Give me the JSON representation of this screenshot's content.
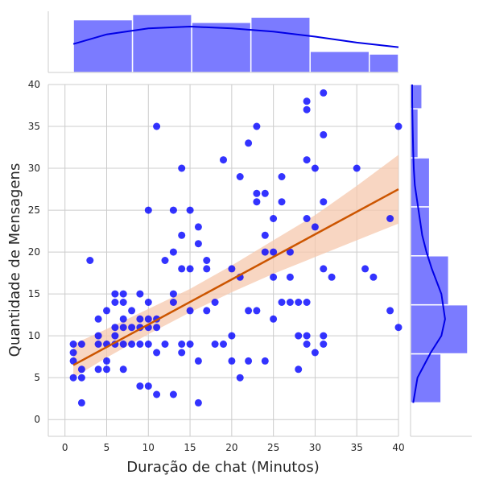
{
  "chart_data": {
    "type": "scatter",
    "title": "",
    "xlabel": "Duração de chat (Minutos)",
    "ylabel": "Quantidade de Mensagens",
    "xlim": [
      -2,
      40
    ],
    "ylim": [
      -2,
      40
    ],
    "xticks": [
      "0",
      "5",
      "10",
      "15",
      "20",
      "25",
      "30",
      "35",
      "40"
    ],
    "yticks": [
      "0",
      "5",
      "10",
      "15",
      "20",
      "25",
      "30",
      "35",
      "40"
    ],
    "grid": true,
    "point_color": "#0000ff",
    "regression_color": "#cc5500",
    "ci_color": "#f5c8ad",
    "hist_color": "#7b7bff",
    "kde_color": "#0000e6",
    "points": [
      [
        1,
        9
      ],
      [
        1,
        8
      ],
      [
        1,
        7
      ],
      [
        1,
        5
      ],
      [
        2,
        2
      ],
      [
        2,
        5
      ],
      [
        2,
        6
      ],
      [
        2,
        9
      ],
      [
        3,
        19
      ],
      [
        4,
        9
      ],
      [
        4,
        10
      ],
      [
        4,
        12
      ],
      [
        4,
        6
      ],
      [
        5,
        13
      ],
      [
        5,
        7
      ],
      [
        5,
        6
      ],
      [
        5,
        9
      ],
      [
        6,
        15
      ],
      [
        6,
        14
      ],
      [
        6,
        9
      ],
      [
        6,
        10
      ],
      [
        6,
        11
      ],
      [
        7,
        15
      ],
      [
        7,
        14
      ],
      [
        7,
        12
      ],
      [
        7,
        11
      ],
      [
        7,
        9
      ],
      [
        7,
        6
      ],
      [
        8,
        11
      ],
      [
        8,
        13
      ],
      [
        8,
        9
      ],
      [
        9,
        15
      ],
      [
        9,
        12
      ],
      [
        9,
        11
      ],
      [
        9,
        9
      ],
      [
        9,
        4
      ],
      [
        10,
        25
      ],
      [
        10,
        14
      ],
      [
        10,
        12
      ],
      [
        10,
        11
      ],
      [
        10,
        9
      ],
      [
        10,
        4
      ],
      [
        11,
        35
      ],
      [
        11,
        12
      ],
      [
        11,
        11
      ],
      [
        11,
        8
      ],
      [
        11,
        3
      ],
      [
        12,
        19
      ],
      [
        12,
        9
      ],
      [
        13,
        25
      ],
      [
        13,
        20
      ],
      [
        13,
        15
      ],
      [
        13,
        14
      ],
      [
        13,
        3
      ],
      [
        14,
        30
      ],
      [
        14,
        22
      ],
      [
        14,
        18
      ],
      [
        14,
        9
      ],
      [
        14,
        8
      ],
      [
        15,
        25
      ],
      [
        15,
        18
      ],
      [
        15,
        13
      ],
      [
        15,
        9
      ],
      [
        16,
        23
      ],
      [
        16,
        21
      ],
      [
        16,
        7
      ],
      [
        16,
        2
      ],
      [
        17,
        19
      ],
      [
        17,
        18
      ],
      [
        17,
        13
      ],
      [
        18,
        14
      ],
      [
        18,
        9
      ],
      [
        19,
        31
      ],
      [
        19,
        9
      ],
      [
        20,
        18
      ],
      [
        20,
        10
      ],
      [
        20,
        7
      ],
      [
        21,
        29
      ],
      [
        21,
        17
      ],
      [
        21,
        5
      ],
      [
        22,
        33
      ],
      [
        22,
        13
      ],
      [
        22,
        7
      ],
      [
        23,
        35
      ],
      [
        23,
        27
      ],
      [
        23,
        26
      ],
      [
        23,
        13
      ],
      [
        24,
        27
      ],
      [
        24,
        22
      ],
      [
        24,
        20
      ],
      [
        24,
        7
      ],
      [
        25,
        24
      ],
      [
        25,
        20
      ],
      [
        25,
        17
      ],
      [
        25,
        12
      ],
      [
        26,
        29
      ],
      [
        26,
        26
      ],
      [
        26,
        14
      ],
      [
        27,
        20
      ],
      [
        27,
        17
      ],
      [
        27,
        14
      ],
      [
        28,
        14
      ],
      [
        28,
        10
      ],
      [
        28,
        6
      ],
      [
        29,
        38
      ],
      [
        29,
        37
      ],
      [
        29,
        31
      ],
      [
        29,
        24
      ],
      [
        29,
        14
      ],
      [
        29,
        10
      ],
      [
        29,
        9
      ],
      [
        30,
        30
      ],
      [
        30,
        23
      ],
      [
        30,
        8
      ],
      [
        31,
        39
      ],
      [
        31,
        34
      ],
      [
        31,
        26
      ],
      [
        31,
        18
      ],
      [
        31,
        10
      ],
      [
        31,
        9
      ],
      [
        32,
        17
      ],
      [
        35,
        30
      ],
      [
        36,
        18
      ],
      [
        37,
        17
      ],
      [
        39,
        24
      ],
      [
        39,
        13
      ],
      [
        40,
        35
      ],
      [
        40,
        11
      ]
    ],
    "regression": {
      "x": [
        1,
        40
      ],
      "y": [
        6.5,
        27.5
      ]
    },
    "ci_band": {
      "x": [
        1,
        5,
        10,
        15,
        20,
        25,
        30,
        35,
        40
      ],
      "lower": [
        5.0,
        7.4,
        10.2,
        12.8,
        15.2,
        17.4,
        19.4,
        21.4,
        23.4
      ],
      "upper": [
        9.0,
        10.8,
        13.2,
        15.6,
        18.4,
        21.4,
        24.4,
        27.9,
        31.6
      ]
    },
    "marginal_x_hist": {
      "bin_edges": [
        1,
        8.1,
        15.2,
        22.3,
        29.4,
        36.5,
        40
      ],
      "counts": [
        20,
        22,
        19,
        21,
        8,
        7
      ]
    },
    "marginal_x_kde": {
      "x": [
        1,
        5,
        10,
        15,
        20,
        25,
        30,
        35,
        40
      ],
      "density": [
        0.62,
        0.83,
        0.96,
        1.0,
        0.96,
        0.89,
        0.78,
        0.65,
        0.55
      ]
    },
    "marginal_y_hist": {
      "bin_edges": [
        2,
        7.85,
        13.7,
        19.55,
        25.4,
        31.25,
        37.1,
        40
      ],
      "counts": [
        8,
        15,
        10,
        5,
        5,
        2,
        3
      ]
    },
    "marginal_y_kde": {
      "y": [
        2,
        5,
        8,
        10,
        12,
        15,
        18,
        20,
        22,
        25,
        28,
        30,
        32,
        35,
        38,
        40
      ],
      "density": [
        0.05,
        0.13,
        0.38,
        0.58,
        0.65,
        0.58,
        0.4,
        0.3,
        0.22,
        0.15,
        0.08,
        0.06,
        0.05,
        0.04,
        0.03,
        0.03
      ]
    }
  }
}
